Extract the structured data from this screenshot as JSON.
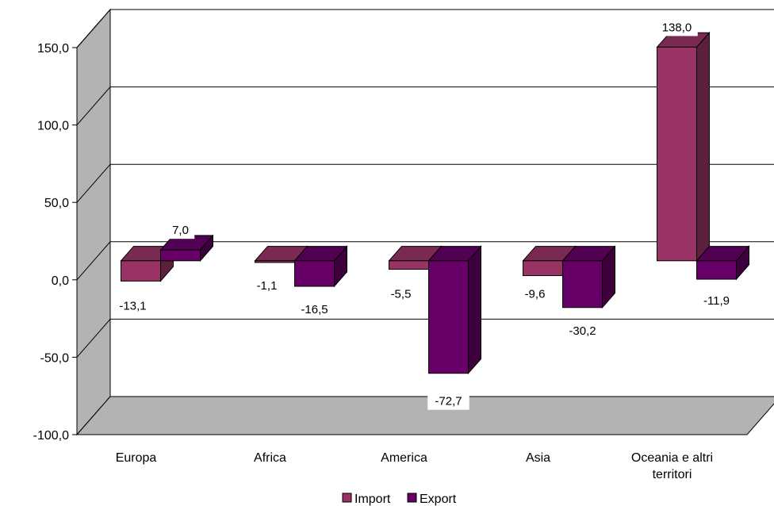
{
  "chart_data": {
    "type": "bar",
    "categories": [
      "Europa",
      "Africa",
      "America",
      "Asia",
      "Oceania e altri territori"
    ],
    "series": [
      {
        "name": "Import",
        "values": [
          -13.1,
          -1.1,
          -5.5,
          -9.6,
          138.0
        ],
        "labels": [
          "-13,1",
          "-1,1",
          "-5,5",
          "-9,6",
          "138,0"
        ]
      },
      {
        "name": "Export",
        "values": [
          7.0,
          -16.5,
          -72.7,
          -30.2,
          -11.9
        ],
        "labels": [
          "7,0",
          "-16,5",
          "-72,7",
          "-30,2",
          "-11,9"
        ]
      }
    ],
    "y_ticks": [
      150,
      100,
      50,
      0,
      -50,
      -100
    ],
    "y_tick_labels": [
      "150,0",
      "100,0",
      "50,0",
      "0,0",
      "-50,0",
      "-100,0"
    ],
    "ylim": [
      -100,
      150
    ],
    "grid": true,
    "three_d": true,
    "legend_position": "bottom",
    "colors": {
      "import_front": "#993366",
      "import_top": "#7a2952",
      "import_side": "#5c1f3d",
      "export_front": "#660066",
      "export_top": "#520052",
      "export_side": "#3d003d",
      "wall": "#ffffff",
      "side_wall": "#b3b3b3",
      "floor": "#b3b3b3"
    }
  }
}
